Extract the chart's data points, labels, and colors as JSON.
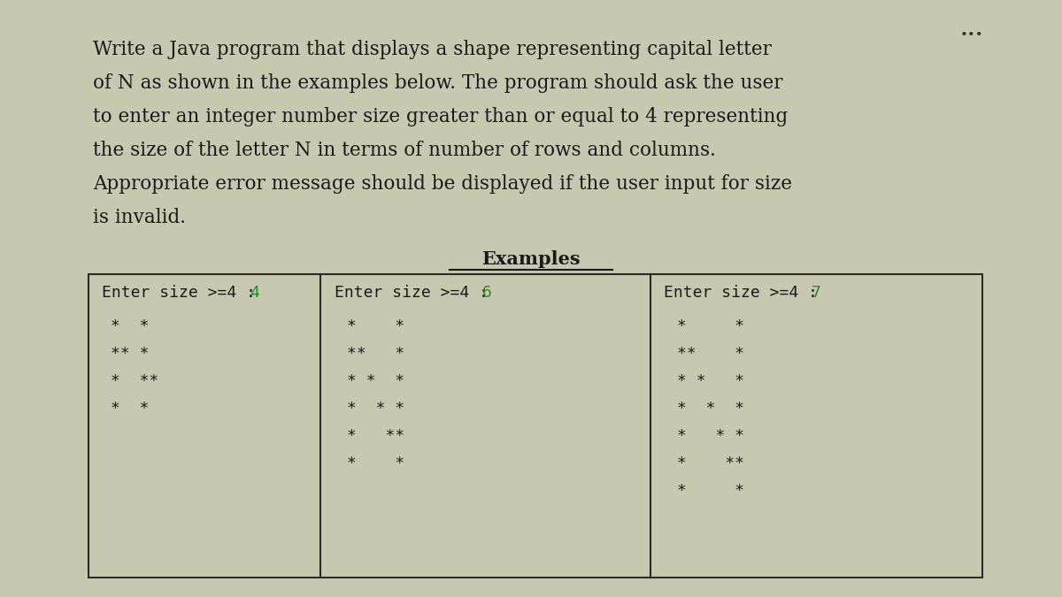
{
  "bg_color": "#c8c8b0",
  "panel_bg": "#d4d4bc",
  "title_text": "Write a Java program that displays a shape representing capital letter\nof N as shown in the examples below. The program should ask the user\nto enter an integer number size greater than or equal to 4 representing\nthe size of the letter N in terms of number of rows and columns.\nAppropriate error message should be displayed if the user input for size\nis invalid.",
  "underline_words": [
    "size",
    "size"
  ],
  "examples_title": "Examples",
  "col1_header": "Enter size >=4 : 4",
  "col2_header": "Enter size >=4 : 6",
  "col3_header": "Enter size >=4 : 7",
  "col1_input": "4",
  "col2_input": "6",
  "col3_input": "7",
  "col1_lines": [
    "*  *",
    "** *",
    "*  **",
    "*  *"
  ],
  "col2_lines": [
    "*     *",
    "**    *",
    "* *   *",
    "*  *  *",
    "*   **",
    "*     *"
  ],
  "col3_lines": [
    "*      *",
    "**     *",
    "* *    *",
    "*  *   *",
    "*   * *",
    "*    **",
    "*      *"
  ],
  "font_family": "monospace",
  "header_fontsize": 13,
  "body_fontsize": 13,
  "title_fontsize": 15.5,
  "examples_fontsize": 15,
  "dots_color": "#333333",
  "input_color": "#228B22",
  "text_color": "#1a1a1a",
  "box_color": "#2a2a2a",
  "line_width": 1.5
}
